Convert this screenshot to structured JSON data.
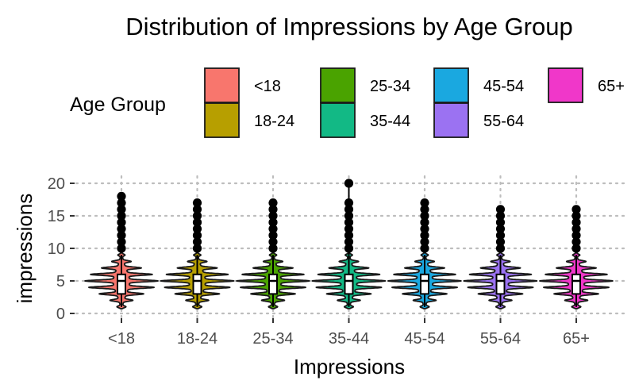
{
  "chart_data": {
    "type": "violin",
    "title": "Distribution of Impressions by Age Group",
    "xlabel": "Impressions",
    "ylabel": "impressions",
    "ylim": [
      0,
      20
    ],
    "yticks": [
      0,
      5,
      10,
      15,
      20
    ],
    "grid": true,
    "legend": {
      "title": "Age Group",
      "placement": "top",
      "items": [
        {
          "label": "<18",
          "color": "#F8766D"
        },
        {
          "label": "18-24",
          "color": "#B79F00"
        },
        {
          "label": "25-34",
          "color": "#4AA300"
        },
        {
          "label": "35-44",
          "color": "#12B985"
        },
        {
          "label": "45-54",
          "color": "#1AA8E0"
        },
        {
          "label": "55-64",
          "color": "#9B72F2"
        },
        {
          "label": "65+",
          "color": "#F037C9"
        }
      ]
    },
    "categories": [
      "<18",
      "18-24",
      "25-34",
      "35-44",
      "45-54",
      "55-64",
      "65+"
    ],
    "series": [
      {
        "category": "<18",
        "q1": 3,
        "median": 5,
        "q3": 6,
        "whisker_low": 1,
        "whisker_high": 9,
        "outliers": [
          10,
          11,
          12,
          13,
          14,
          15,
          16,
          17,
          18
        ]
      },
      {
        "category": "18-24",
        "q1": 3,
        "median": 5,
        "q3": 6,
        "whisker_low": 1,
        "whisker_high": 9,
        "outliers": [
          10,
          11,
          12,
          13,
          14,
          15,
          16,
          17
        ]
      },
      {
        "category": "25-34",
        "q1": 3,
        "median": 5,
        "q3": 6,
        "whisker_low": 1,
        "whisker_high": 9,
        "outliers": [
          10,
          11,
          12,
          13,
          14,
          15,
          16,
          17
        ]
      },
      {
        "category": "35-44",
        "q1": 3,
        "median": 5,
        "q3": 6,
        "whisker_low": 1,
        "whisker_high": 20,
        "outliers": [
          10,
          11,
          12,
          13,
          14,
          15,
          16,
          17,
          20
        ]
      },
      {
        "category": "45-54",
        "q1": 3,
        "median": 5,
        "q3": 6,
        "whisker_low": 1,
        "whisker_high": 9,
        "outliers": [
          10,
          11,
          12,
          13,
          14,
          15,
          16,
          17
        ]
      },
      {
        "category": "55-64",
        "q1": 3,
        "median": 5,
        "q3": 6,
        "whisker_low": 1,
        "whisker_high": 9,
        "outliers": [
          10,
          11,
          12,
          13,
          14,
          15,
          16
        ]
      },
      {
        "category": "65+",
        "q1": 3,
        "median": 5,
        "q3": 6,
        "whisker_low": 1,
        "whisker_high": 9,
        "outliers": [
          10,
          11,
          12,
          13,
          14,
          15,
          16
        ]
      }
    ]
  }
}
